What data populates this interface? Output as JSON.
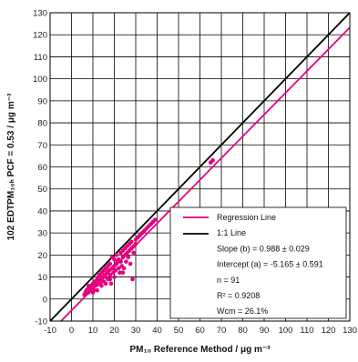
{
  "chart_data": {
    "type": "scatter",
    "xlabel": "PM₁₀ Reference Method / μg m⁻³",
    "ylabel": "102 EDTPM₁₀ₕ PCF = 0.53 / μg m⁻³",
    "xlim": [
      -10,
      130
    ],
    "ylim": [
      -10,
      130
    ],
    "x_ticks": [
      -10,
      0,
      10,
      20,
      30,
      40,
      50,
      60,
      70,
      80,
      90,
      100,
      110,
      120,
      130
    ],
    "y_ticks": [
      -10,
      0,
      10,
      20,
      30,
      40,
      50,
      60,
      70,
      80,
      90,
      100,
      110,
      120,
      130
    ],
    "grid": true,
    "legend_position": "lower-right",
    "colors": {
      "regression": "#e6007e",
      "identity": "#000000",
      "points": "#e6007e"
    },
    "series": [
      {
        "name": "points",
        "points": [
          [
            6,
            2
          ],
          [
            6.5,
            3
          ],
          [
            7,
            4
          ],
          [
            7,
            2.5
          ],
          [
            7.5,
            3.5
          ],
          [
            8,
            5
          ],
          [
            8,
            3
          ],
          [
            8.5,
            4
          ],
          [
            9,
            6
          ],
          [
            9,
            4.5
          ],
          [
            9.5,
            5
          ],
          [
            10,
            7
          ],
          [
            10,
            5.5
          ],
          [
            10.5,
            4
          ],
          [
            11,
            6
          ],
          [
            11,
            8
          ],
          [
            11.5,
            7
          ],
          [
            12,
            9
          ],
          [
            12,
            6.5
          ],
          [
            12.5,
            10
          ],
          [
            13,
            8
          ],
          [
            13,
            11
          ],
          [
            13.5,
            7
          ],
          [
            14,
            12
          ],
          [
            14,
            9
          ],
          [
            14.5,
            10
          ],
          [
            15,
            13
          ],
          [
            15,
            8
          ],
          [
            15.5,
            11
          ],
          [
            16,
            14
          ],
          [
            16,
            10
          ],
          [
            16.5,
            12
          ],
          [
            17,
            15
          ],
          [
            17,
            9
          ],
          [
            17.5,
            13
          ],
          [
            18,
            16
          ],
          [
            18,
            11
          ],
          [
            18.5,
            7
          ],
          [
            19,
            19
          ],
          [
            19,
            14
          ],
          [
            19.5,
            12
          ],
          [
            20,
            18
          ],
          [
            20,
            15
          ],
          [
            20.5,
            13
          ],
          [
            21,
            20
          ],
          [
            21,
            16
          ],
          [
            21.5,
            17
          ],
          [
            22,
            14
          ],
          [
            22,
            18
          ],
          [
            22.5,
            12
          ],
          [
            23,
            21
          ],
          [
            23,
            17
          ],
          [
            23.5,
            15
          ],
          [
            24,
            22
          ],
          [
            24,
            19
          ],
          [
            24.5,
            14
          ],
          [
            25,
            23
          ],
          [
            25,
            20
          ],
          [
            25.5,
            17
          ],
          [
            26,
            24
          ],
          [
            26,
            21
          ],
          [
            26.5,
            19
          ],
          [
            27,
            25
          ],
          [
            27,
            22
          ],
          [
            27.5,
            16
          ],
          [
            28,
            26
          ],
          [
            28,
            23
          ],
          [
            28.5,
            9
          ],
          [
            29,
            24
          ],
          [
            29,
            21
          ],
          [
            30,
            27
          ],
          [
            30,
            25
          ],
          [
            31,
            28
          ],
          [
            32,
            29
          ],
          [
            33,
            30
          ],
          [
            34,
            31
          ],
          [
            35,
            32
          ],
          [
            36,
            33
          ],
          [
            37,
            34
          ],
          [
            38,
            35
          ],
          [
            39,
            36
          ],
          [
            65,
            62
          ],
          [
            66,
            63
          ],
          [
            8,
            6
          ],
          [
            10,
            3
          ],
          [
            12,
            4
          ],
          [
            14,
            6
          ],
          [
            16,
            7
          ],
          [
            18,
            9
          ],
          [
            20,
            10
          ],
          [
            24,
            12
          ]
        ]
      }
    ],
    "lines": [
      {
        "name": "Regression Line",
        "slope": 0.988,
        "intercept": -5.165
      },
      {
        "name": "1:1 Line",
        "slope": 1,
        "intercept": 0
      }
    ]
  },
  "legend": {
    "regression_label": "Regression Line",
    "identity_label": "1:1 Line",
    "slope_text": "Slope (b) = 0.988 ± 0.029",
    "intercept_text": "Intercept (a) = -5.165 ± 0.591",
    "n_text": "n = 91",
    "r2_text": "R² = 0.9208",
    "wcm_text": "Wcm = 26.1%"
  }
}
